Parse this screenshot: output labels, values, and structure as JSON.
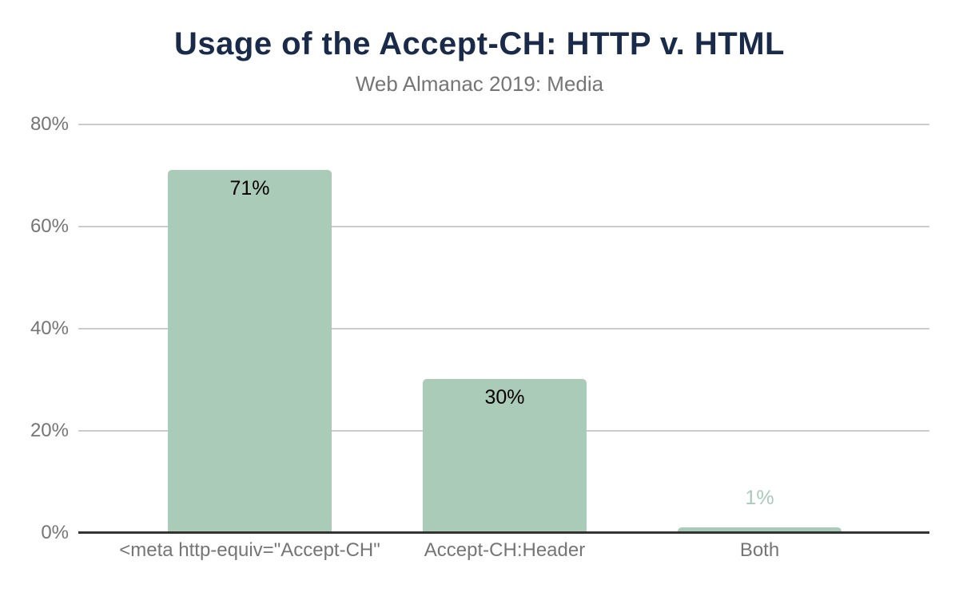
{
  "chart_data": {
    "type": "bar",
    "title": "Usage of the Accept-CH: HTTP v. HTML",
    "subtitle": "Web Almanac 2019: Media",
    "categories": [
      "<meta http-equiv=\"Accept-CH\"",
      "Accept-CH:Header",
      "Both"
    ],
    "values": [
      71,
      30,
      1
    ],
    "value_labels": [
      "71%",
      "30%",
      "1%"
    ],
    "value_label_placement": [
      "inside",
      "inside",
      "above"
    ],
    "xlabel": "",
    "ylabel": "",
    "ylim": [
      0,
      80
    ],
    "y_ticks": [
      {
        "value": 80,
        "label": "80%"
      },
      {
        "value": 60,
        "label": "60%"
      },
      {
        "value": 40,
        "label": "40%"
      },
      {
        "value": 20,
        "label": "20%"
      },
      {
        "value": 0,
        "label": "0%"
      }
    ],
    "grid": true,
    "legend_position": "none",
    "colors": {
      "bar": "#a9cbb7",
      "title": "#1a2b49",
      "subtitle": "#757575",
      "axis_labels": "#757575",
      "gridline": "#cccccc",
      "baseline": "#333333",
      "value_label_inside": "#000000",
      "value_label_above": "#a9cbb7"
    }
  }
}
